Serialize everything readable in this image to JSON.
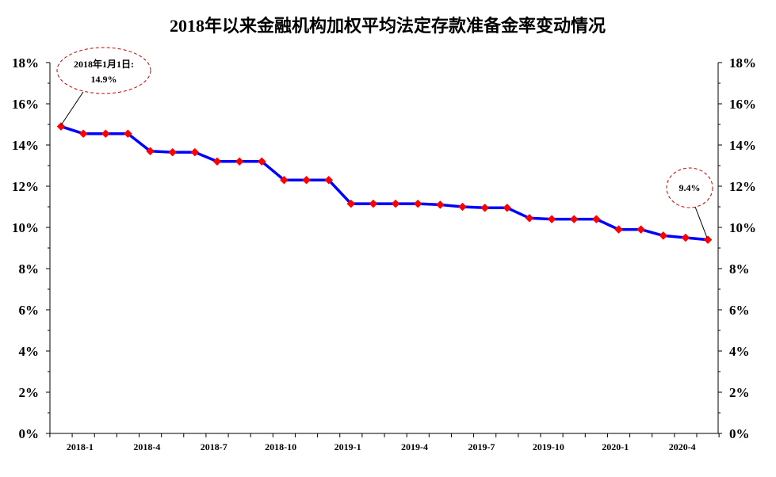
{
  "chart_data": {
    "type": "line",
    "title": "2018年以来金融机构加权平均法定存款准备金率变动情况",
    "xlabel": "",
    "ylabel": "",
    "ylim": [
      0,
      18
    ],
    "y_tick_labels": [
      "0%",
      "2%",
      "4%",
      "6%",
      "8%",
      "10%",
      "12%",
      "14%",
      "16%",
      "18%"
    ],
    "x_tick_labels": [
      "2018-1",
      "2018-4",
      "2018-7",
      "2018-10",
      "2019-1",
      "2019-4",
      "2019-7",
      "2019-10",
      "2020-1",
      "2020-4"
    ],
    "grid": false,
    "legend": "none",
    "colors": {
      "line": "#0000ff",
      "marker": "#ff0000",
      "annotation_ellipse": "#cc0000"
    },
    "series": [
      {
        "x": [
          "2018-1",
          "2018-2",
          "2018-3",
          "2018-4",
          "2018-5",
          "2018-6",
          "2018-7",
          "2018-8",
          "2018-9",
          "2018-10",
          "2018-11",
          "2018-12",
          "2019-1",
          "2019-2",
          "2019-3",
          "2019-4",
          "2019-5",
          "2019-6",
          "2019-7",
          "2019-8",
          "2019-9",
          "2019-10",
          "2019-11",
          "2019-12",
          "2020-1",
          "2020-2",
          "2020-3",
          "2020-4",
          "2020-5",
          "2020-6"
        ],
        "values": [
          14.9,
          14.55,
          14.55,
          14.55,
          13.7,
          13.65,
          13.65,
          13.2,
          13.2,
          13.2,
          12.3,
          12.3,
          12.3,
          11.15,
          11.15,
          11.15,
          11.15,
          11.1,
          11.0,
          10.95,
          10.95,
          10.45,
          10.4,
          10.4,
          10.4,
          9.9,
          9.9,
          9.6,
          9.5,
          9.4
        ]
      }
    ],
    "annotations": [
      {
        "line1": "2018年1月1日:",
        "line2": "14.9%"
      },
      {
        "line1": "9.4%"
      }
    ]
  }
}
